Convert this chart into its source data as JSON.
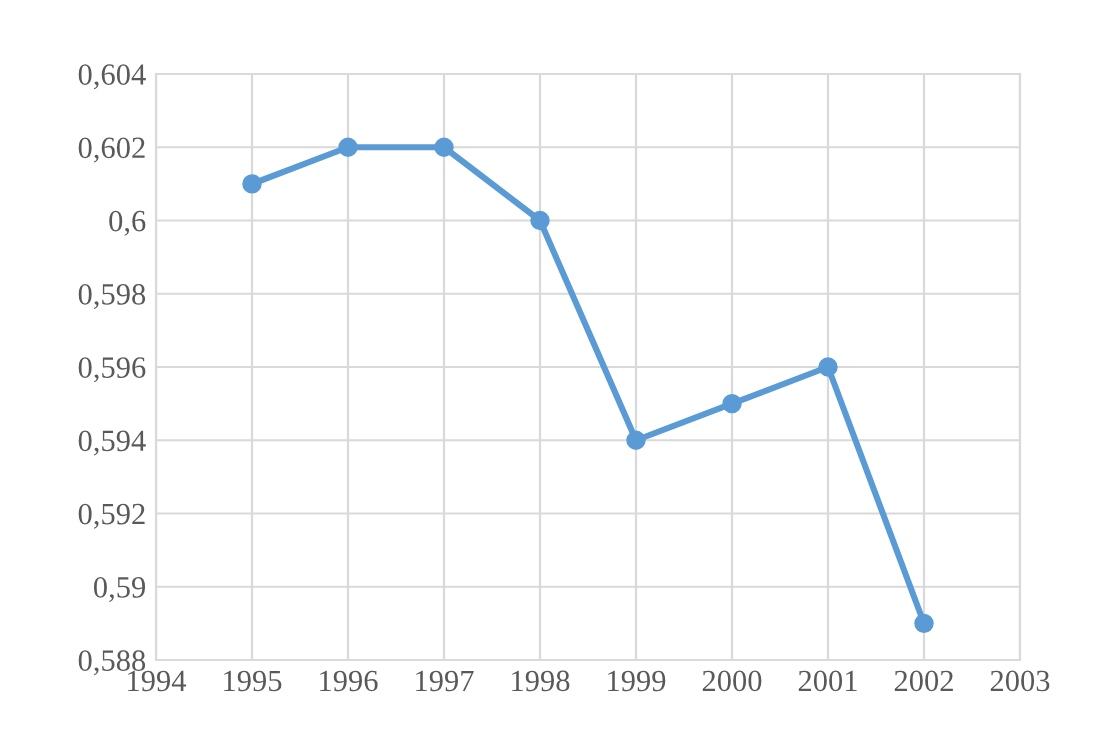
{
  "chart_data": {
    "type": "line",
    "x": [
      1995,
      1996,
      1997,
      1998,
      1999,
      2000,
      2001,
      2002
    ],
    "series": [
      {
        "color": "#5b9bd5",
        "values": [
          0.601,
          0.602,
          0.602,
          0.6,
          0.594,
          0.595,
          0.596,
          0.589
        ]
      }
    ],
    "xlim": [
      1994,
      2003
    ],
    "xticks": [
      1994,
      1995,
      1996,
      1997,
      1998,
      1999,
      2000,
      2001,
      2002,
      2003
    ],
    "ylim": [
      0.588,
      0.604
    ],
    "yticks": [
      {
        "value": 0.588,
        "label": "0,588"
      },
      {
        "value": 0.59,
        "label": "0,59"
      },
      {
        "value": 0.592,
        "label": "0,592"
      },
      {
        "value": 0.594,
        "label": "0,594"
      },
      {
        "value": 0.596,
        "label": "0,596"
      },
      {
        "value": 0.598,
        "label": "0,598"
      },
      {
        "value": 0.6,
        "label": "0,6"
      },
      {
        "value": 0.602,
        "label": "0,602"
      },
      {
        "value": 0.604,
        "label": "0,604"
      }
    ],
    "grid": true,
    "marker": "circle",
    "line_style": "solid"
  }
}
